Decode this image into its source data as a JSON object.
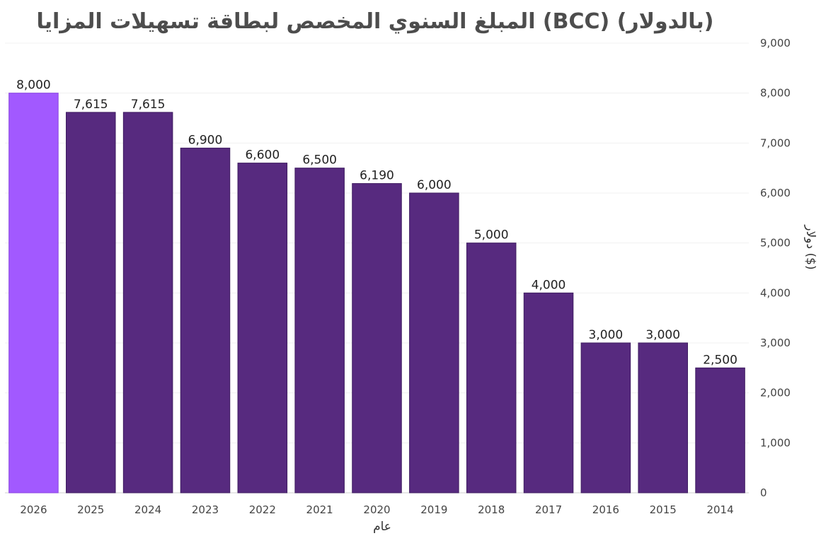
{
  "chart_data": {
    "type": "bar",
    "title": "المبلغ السنوي المخصص لبطاقة تسهيلات المزايا (BCC) (بالدولار)",
    "xlabel": "عام",
    "ylabel": "دولار ($)",
    "categories": [
      "2026",
      "2025",
      "2024",
      "2023",
      "2022",
      "2021",
      "2020",
      "2019",
      "2018",
      "2017",
      "2016",
      "2015",
      "2014"
    ],
    "values": [
      8000,
      7615,
      7615,
      6900,
      6600,
      6500,
      6190,
      6000,
      5000,
      4000,
      3000,
      3000,
      2500
    ],
    "value_labels": [
      "8,000",
      "7,615",
      "7,615",
      "6,900",
      "6,600",
      "6,500",
      "6,190",
      "6,000",
      "5,000",
      "4,000",
      "3,000",
      "3,000",
      "2,500"
    ],
    "ylim": [
      0,
      9000
    ],
    "yticks": [
      0,
      1000,
      2000,
      3000,
      4000,
      5000,
      6000,
      7000,
      8000,
      9000
    ],
    "ytick_labels": [
      "0",
      "1,000",
      "2,000",
      "3,000",
      "4,000",
      "5,000",
      "6,000",
      "7,000",
      "8,000",
      "9,000"
    ],
    "y_axis_side": "right",
    "grid": true,
    "legend": false,
    "colors": {
      "highlight": "#a259ff",
      "default": "#572a7f",
      "highlight_edge": "#8a45e0",
      "default_edge": "#3f1d61"
    },
    "highlight_index": 0
  }
}
